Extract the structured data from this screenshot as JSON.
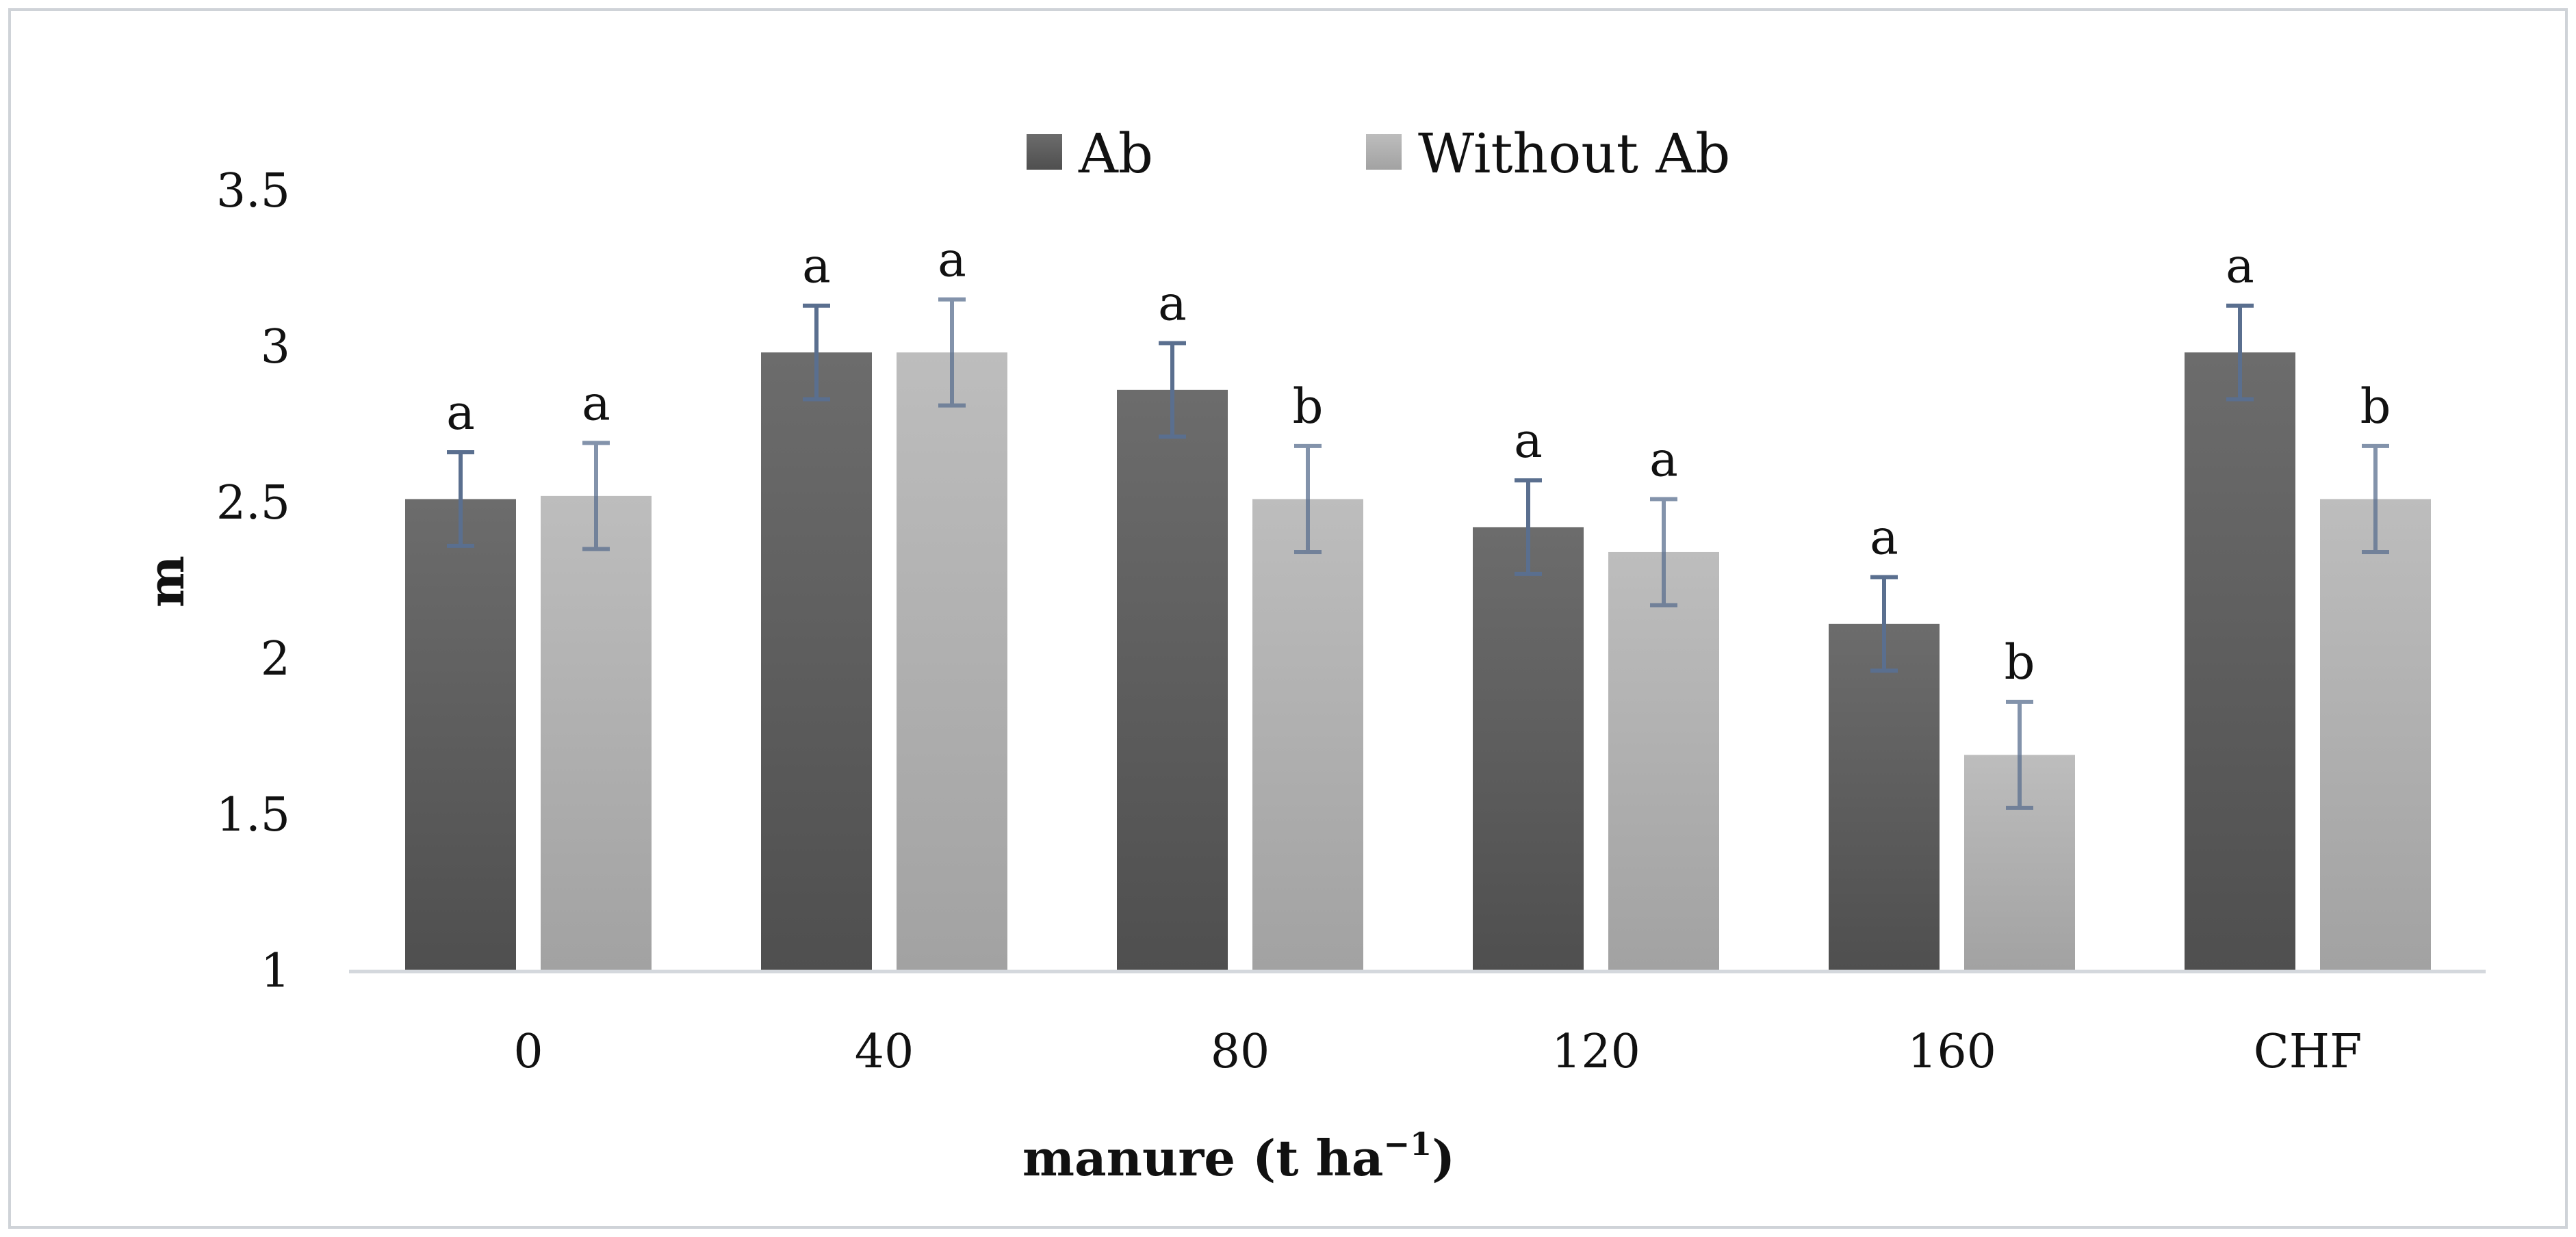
{
  "chart_data": {
    "type": "bar",
    "ylabel": "m",
    "xlabel_main": "manure (t ha",
    "xlabel_sup": "−1",
    "xlabel_close": ")",
    "ylim": [
      1,
      3.5
    ],
    "yticks": [
      "1",
      "1.5",
      "2",
      "2.5",
      "3",
      "3.5"
    ],
    "grid": false,
    "legend_position": "top-center",
    "categories": [
      "0",
      "40",
      "80",
      "120",
      "160",
      "CHF"
    ],
    "series": [
      {
        "name": "Ab",
        "color_top": "#6c6c6c",
        "color_bottom": "#4f4f4f",
        "values": [
          2.51,
          2.98,
          2.86,
          2.42,
          2.11,
          2.98
        ],
        "errors": [
          0.15,
          0.15,
          0.15,
          0.15,
          0.15,
          0.15
        ],
        "letters": [
          "a",
          "a",
          "a",
          "a",
          "a",
          "a"
        ]
      },
      {
        "name": "Without Ab",
        "color_top": "#bdbdbd",
        "color_bottom": "#a2a2a2",
        "values": [
          2.52,
          2.98,
          2.51,
          2.34,
          1.69,
          2.51
        ],
        "errors": [
          0.17,
          0.17,
          0.17,
          0.17,
          0.17,
          0.17
        ],
        "letters": [
          "a",
          "a",
          "b",
          "a",
          "b",
          "b"
        ]
      }
    ],
    "error_bar_color": "#5a6f8f",
    "frame_color": "#cfd3d8",
    "axis_color": "#d4d8dd"
  }
}
